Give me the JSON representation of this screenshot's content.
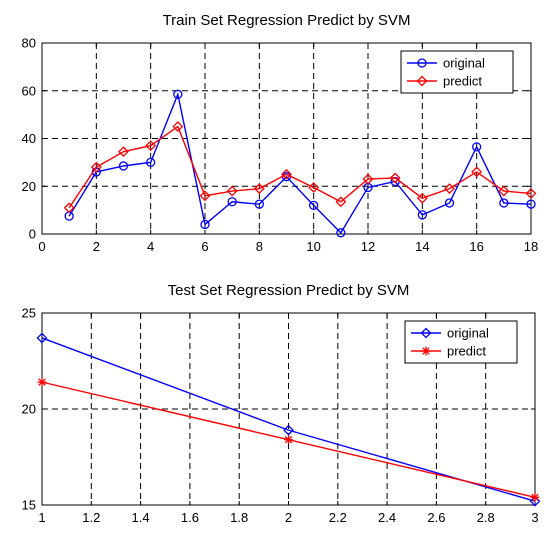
{
  "chart_data": [
    {
      "type": "line",
      "title": "Train Set Regression Predict by SVM",
      "xlabel": "",
      "ylabel": "",
      "xlim": [
        0,
        18
      ],
      "ylim": [
        0,
        80
      ],
      "xticks": [
        0,
        2,
        4,
        6,
        8,
        10,
        12,
        14,
        16,
        18
      ],
      "yticks": [
        0,
        20,
        40,
        60,
        80
      ],
      "grid": true,
      "legend_position": "top-right",
      "x": [
        1,
        2,
        3,
        4,
        5,
        6,
        7,
        8,
        9,
        10,
        11,
        12,
        13,
        14,
        15,
        16,
        17,
        18
      ],
      "series": [
        {
          "name": "original",
          "color": "#0000ff",
          "marker": "circle",
          "values": [
            7.5,
            26,
            28.5,
            30,
            58.5,
            4,
            13.5,
            12.5,
            24,
            12,
            0.5,
            19.5,
            22,
            8,
            13,
            36.5,
            13,
            12.5
          ]
        },
        {
          "name": "predict",
          "color": "#ff0000",
          "marker": "diamond",
          "values": [
            11,
            28,
            34.5,
            37,
            45,
            16,
            18,
            19,
            25,
            19.5,
            13.5,
            23,
            23.5,
            15,
            19,
            26,
            18,
            17
          ]
        }
      ]
    },
    {
      "type": "line",
      "title": "Test Set Regression Predict by SVM",
      "xlabel": "",
      "ylabel": "",
      "xlim": [
        1,
        3
      ],
      "ylim": [
        15,
        25
      ],
      "xticks": [
        1,
        1.2,
        1.4,
        1.6,
        1.8,
        2,
        2.2,
        2.4,
        2.6,
        2.8,
        3
      ],
      "yticks": [
        15,
        20,
        25
      ],
      "grid": true,
      "legend_position": "top-right",
      "x": [
        1,
        2,
        3
      ],
      "series": [
        {
          "name": "original",
          "color": "#0000ff",
          "marker": "diamond",
          "values": [
            23.7,
            18.9,
            15.2
          ]
        },
        {
          "name": "predict",
          "color": "#ff0000",
          "marker": "asterisk",
          "values": [
            21.4,
            18.4,
            15.4
          ]
        }
      ]
    }
  ]
}
